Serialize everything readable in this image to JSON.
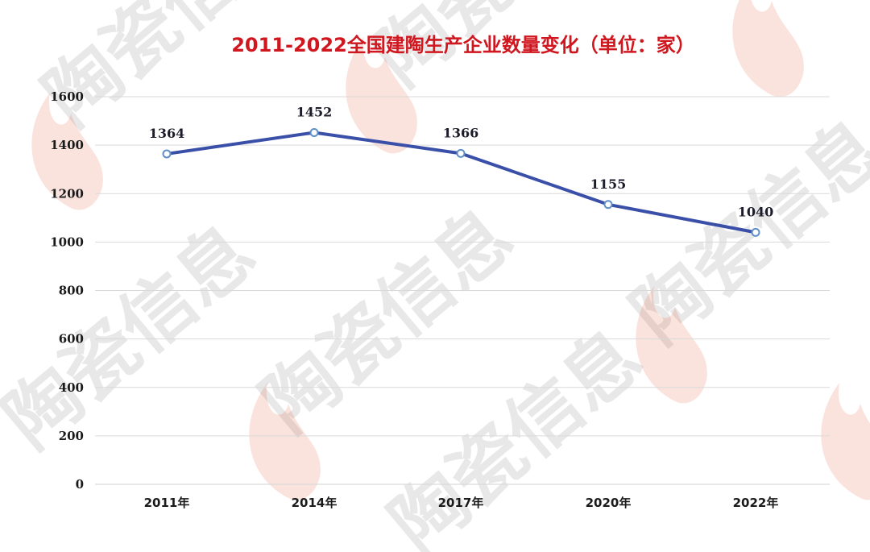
{
  "watermark": {
    "text": "陶瓷信息",
    "flame_color": "#e8502a"
  },
  "chart_data": {
    "type": "line",
    "title": "2011-2022全国建陶生产企业数量变化（单位：家）",
    "title_color": "#d0161e",
    "categories": [
      "2011年",
      "2014年",
      "2017年",
      "2020年",
      "2022年"
    ],
    "values": [
      1364,
      1452,
      1366,
      1155,
      1040
    ],
    "data_labels": [
      "1364",
      "1452",
      "1366",
      "1155",
      "1040"
    ],
    "ylim": [
      0,
      1600
    ],
    "yticks": [
      "0",
      "200",
      "400",
      "600",
      "800",
      "1000",
      "1200",
      "1400",
      "1600"
    ],
    "xlabel": "",
    "ylabel": "",
    "grid": true,
    "legend": "none",
    "line_color": "#3a4fa8",
    "marker_fill": "#ffffff",
    "marker_stroke": "#5f8fc6",
    "grid_color": "#d9d9d9"
  }
}
